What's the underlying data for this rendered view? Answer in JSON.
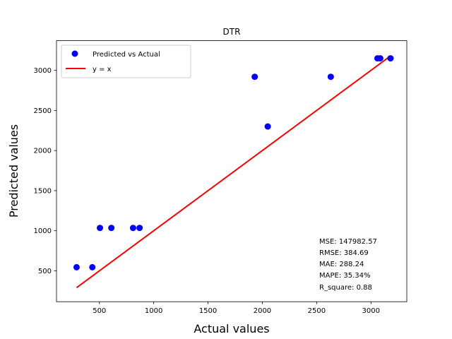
{
  "chart_data": {
    "type": "scatter",
    "title": "DTR",
    "xlabel": "Actual values",
    "ylabel": "Predicted values",
    "xlim": [
      105,
      3330
    ],
    "ylim": [
      115,
      3370
    ],
    "xticks": [
      500,
      1000,
      1500,
      2000,
      2500,
      3000
    ],
    "yticks": [
      500,
      1000,
      1500,
      2000,
      2500,
      3000
    ],
    "grid": false,
    "legend_position": "upper-left",
    "series": [
      {
        "name": "Predicted vs Actual",
        "kind": "scatter",
        "color": "#0000ff",
        "x": [
          290,
          435,
          505,
          610,
          810,
          870,
          1930,
          2050,
          2630,
          3060,
          3085,
          3180
        ],
        "y": [
          545,
          545,
          1035,
          1035,
          1035,
          1035,
          2920,
          2300,
          2920,
          3150,
          3150,
          3150
        ]
      },
      {
        "name": "y = x",
        "kind": "line",
        "color": "#ff0000",
        "x": [
          290,
          3180
        ],
        "y": [
          290,
          3180
        ]
      }
    ],
    "annotations": [
      "MSE: 147982.57",
      "RMSE: 384.69",
      "MAE: 288.24",
      "MAPE: 35.34%",
      "R_square: 0.88"
    ]
  }
}
